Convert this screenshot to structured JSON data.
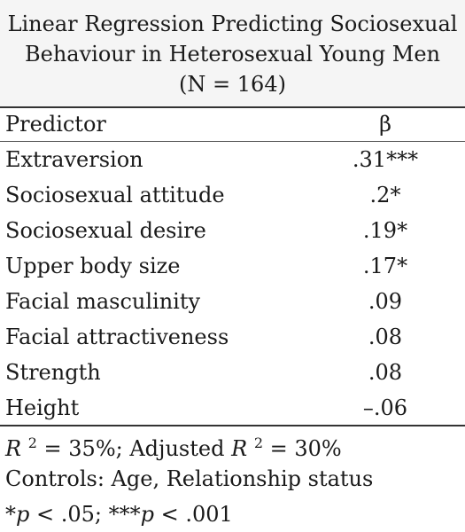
{
  "title": {
    "line1": "Linear Regression Predicting Sociosexual",
    "line2": "Behaviour in Heterosexual Young Men",
    "line3": "(N = 164)"
  },
  "header": {
    "predictor": "Predictor",
    "beta": "β"
  },
  "rows": [
    {
      "predictor": "Extraversion",
      "beta": ".31***"
    },
    {
      "predictor": "Sociosexual attitude",
      "beta": ".2*"
    },
    {
      "predictor": "Sociosexual desire",
      "beta": ".19*"
    },
    {
      "predictor": "Upper body size",
      "beta": ".17*"
    },
    {
      "predictor": "Facial masculinity",
      "beta": ".09"
    },
    {
      "predictor": "Facial attractiveness",
      "beta": ".08"
    },
    {
      "predictor": "Strength",
      "beta": ".08"
    },
    {
      "predictor": "Height",
      "beta": "–.06"
    }
  ],
  "notes": {
    "r2_label": "R",
    "r2_sup": "2",
    "r2_value": " = 35%; Adjusted ",
    "adj_label": "R",
    "adj_sup": "2",
    "adj_value": " = 30%",
    "controls": "Controls: Age, Relationship status",
    "sig_star1": "*",
    "sig_p1": "p",
    "sig_text1": " < .05; ***",
    "sig_p2": "p",
    "sig_text2": " < .001"
  },
  "colors": {
    "title_band": "#f5f5f5",
    "rules": "#333333",
    "text": "#1a1a1a"
  }
}
